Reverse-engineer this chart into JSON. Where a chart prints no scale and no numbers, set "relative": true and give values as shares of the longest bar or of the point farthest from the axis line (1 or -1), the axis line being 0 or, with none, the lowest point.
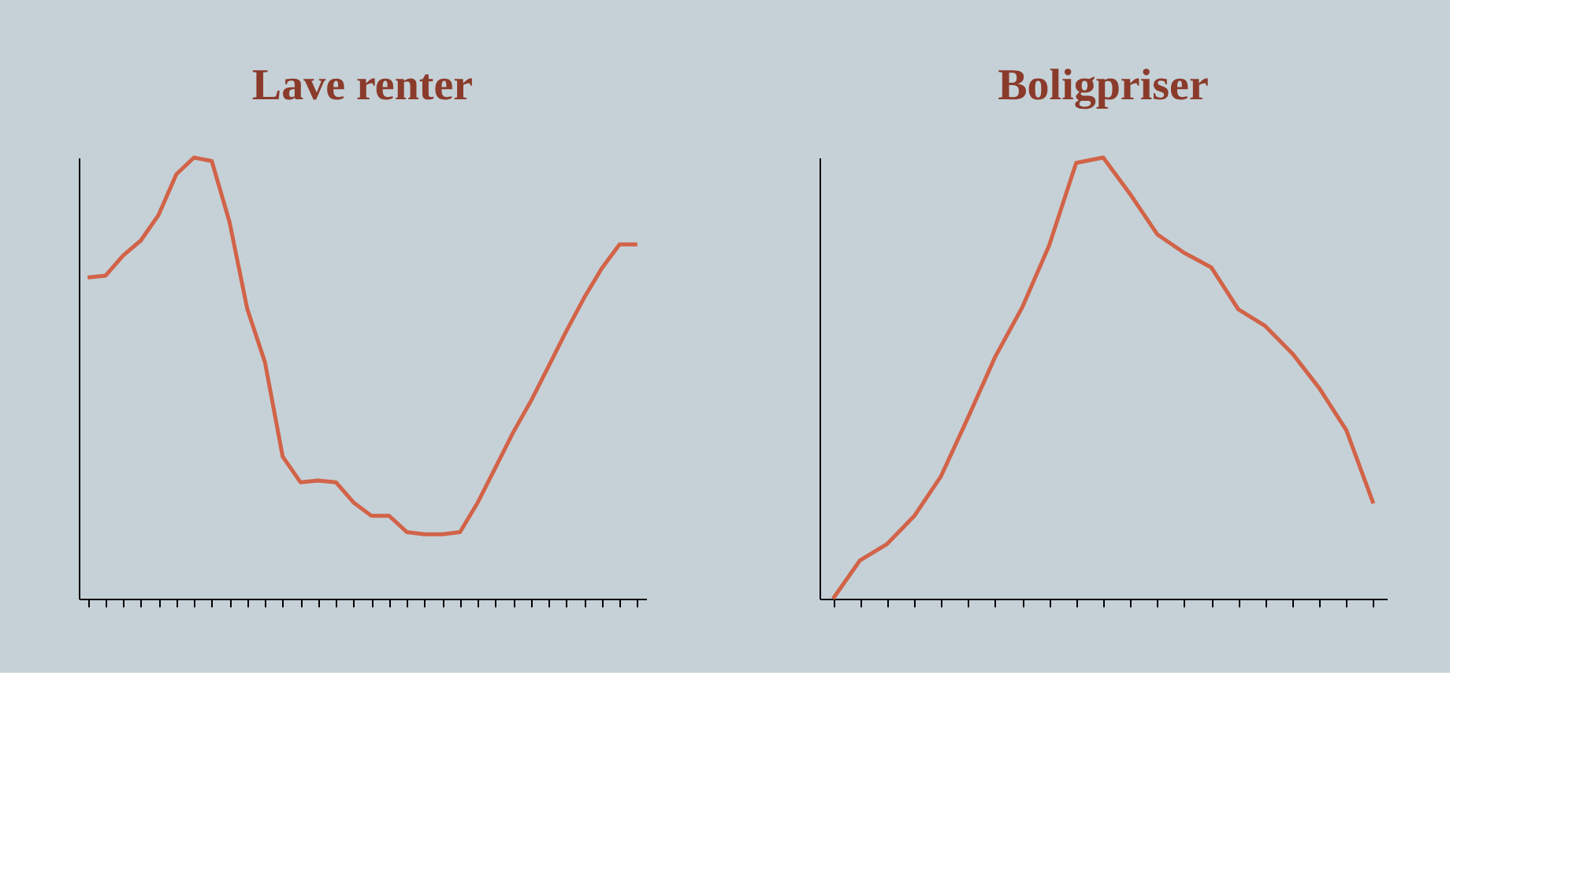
{
  "chart_data": [
    {
      "type": "line",
      "title": "Lave renter",
      "relative": true,
      "grid": false,
      "categories": [
        null,
        null,
        null,
        null,
        null,
        null,
        null,
        null,
        null,
        null,
        null,
        null,
        null,
        null,
        null,
        null,
        null,
        null,
        null,
        null,
        null,
        null,
        null,
        null,
        null,
        null,
        null,
        null,
        null,
        null,
        null,
        null
      ],
      "series": [
        {
          "color": "#d26348",
          "values": [
            0.728,
            0.732,
            0.778,
            0.812,
            0.87,
            0.962,
            1,
            0.992,
            0.854,
            0.657,
            0.536,
            0.322,
            0.264,
            0.268,
            0.264,
            0.218,
            0.188,
            0.188,
            0.151,
            0.146,
            0.146,
            0.151,
            0.218,
            0.297,
            0.377,
            0.448,
            0.527,
            0.607,
            0.682,
            0.749,
            0.803,
            0.803
          ]
        }
      ]
    },
    {
      "type": "line",
      "title": "Boligpriser",
      "relative": true,
      "grid": false,
      "categories": [
        null,
        null,
        null,
        null,
        null,
        null,
        null,
        null,
        null,
        null,
        null,
        null,
        null,
        null,
        null,
        null,
        null,
        null,
        null,
        null,
        null
      ],
      "series": [
        {
          "color": "#d26348",
          "values": [
            0,
            0.087,
            0.124,
            0.187,
            0.278,
            0.411,
            0.548,
            0.66,
            0.801,
            0.988,
            1,
            0.917,
            0.826,
            0.784,
            0.751,
            0.656,
            0.618,
            0.556,
            0.477,
            0.382,
            0.216
          ]
        }
      ]
    }
  ]
}
